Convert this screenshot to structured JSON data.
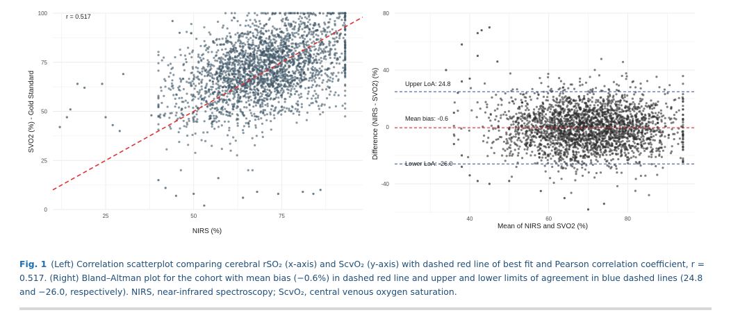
{
  "chart_data": [
    {
      "type": "scatter",
      "title": "",
      "xlabel": "NIRS (%)",
      "ylabel": "SVO2 (%) - Gold Standard",
      "xlim": [
        10,
        98
      ],
      "ylim": [
        0,
        100
      ],
      "x_ticks": [
        "25",
        "50",
        "75"
      ],
      "y_ticks": [
        "0",
        "25",
        "50",
        "75",
        "100"
      ],
      "grid": true,
      "annotation": "r = 0.517",
      "fit_line": {
        "slope": 1.0,
        "intercept": 0,
        "color": "#e03131",
        "style": "dashed"
      },
      "point_color": "#3d5566",
      "n_points": 2600,
      "cluster": {
        "x_mean": 70,
        "x_sd": 12,
        "x_range": [
          40,
          93
        ],
        "y_mean_at_x_mean": 72,
        "y_slope": 0.55,
        "y_sd": 13,
        "y_range": [
          20,
          100
        ]
      },
      "outliers": [
        [
          12,
          42
        ],
        [
          14,
          47
        ],
        [
          15,
          51
        ],
        [
          17,
          64
        ],
        [
          19,
          62
        ],
        [
          24,
          64
        ],
        [
          25,
          47
        ],
        [
          27,
          43
        ],
        [
          29,
          40
        ],
        [
          30,
          69
        ],
        [
          38,
          48
        ],
        [
          40,
          15
        ],
        [
          42,
          11
        ],
        [
          45,
          7
        ],
        [
          50,
          8
        ],
        [
          53,
          2
        ],
        [
          57,
          16
        ],
        [
          64,
          6
        ],
        [
          68,
          9
        ],
        [
          74,
          8
        ],
        [
          81,
          9
        ],
        [
          84,
          8
        ],
        [
          86,
          10
        ],
        [
          46,
          90
        ],
        [
          44,
          96
        ]
      ]
    },
    {
      "type": "scatter",
      "title": "",
      "xlabel": "Mean of NIRS and SVO2 (%)",
      "ylabel": "Difference (NIRS - SVO2) (%)",
      "xlim": [
        21,
        97
      ],
      "ylim": [
        -60,
        80
      ],
      "x_ticks": [
        "40",
        "60",
        "80"
      ],
      "y_ticks": [
        "-40",
        "0",
        "40",
        "80"
      ],
      "grid": true,
      "lines": [
        {
          "label": "Upper LoA: 24.8",
          "value": 24.8,
          "color": "#3b5ea8",
          "style": "dashed"
        },
        {
          "label": "Mean bias: -0.6",
          "value": -0.6,
          "color": "#e03131",
          "style": "dashed"
        },
        {
          "label": "Lower LoA: -26.0",
          "value": -26.0,
          "color": "#3b5ea8",
          "style": "dashed"
        }
      ],
      "point_color": "#2b2b2b",
      "n_points": 2600,
      "cluster": {
        "x_mean": 70,
        "x_sd": 11,
        "x_range": [
          36,
          94
        ],
        "y_mean": -0.6,
        "y_sd": 12.8,
        "y_range": [
          -60,
          60
        ]
      },
      "outliers": [
        [
          42,
          66
        ],
        [
          43,
          68
        ],
        [
          45,
          70
        ],
        [
          38,
          58
        ],
        [
          42,
          50
        ],
        [
          47,
          46
        ],
        [
          34,
          40
        ],
        [
          38,
          32
        ],
        [
          40,
          34
        ],
        [
          36,
          -12
        ],
        [
          38,
          -28
        ],
        [
          40,
          -34
        ],
        [
          42,
          -38
        ],
        [
          45,
          -40
        ],
        [
          50,
          -38
        ],
        [
          58,
          -45
        ],
        [
          64,
          -50
        ],
        [
          70,
          -58
        ],
        [
          74,
          -54
        ],
        [
          36,
          10
        ],
        [
          37,
          24
        ],
        [
          38,
          -20
        ]
      ]
    }
  ],
  "caption": {
    "label": "Fig. 1",
    "text": "(Left) Correlation scatterplot comparing cerebral rSO₂ (x-axis) and ScvO₂ (y-axis) with dashed red line of best fit and Pearson correlation coefficient, r = 0.517. (Right) Bland–Altman plot for the cohort with mean bias (−0.6%) in dashed red line and upper and lower limits of agreement in blue dashed lines (24.8 and −26.0, respectively). NIRS, near-infrared spectroscopy; ScvO₂, central venous oxygen saturation."
  }
}
